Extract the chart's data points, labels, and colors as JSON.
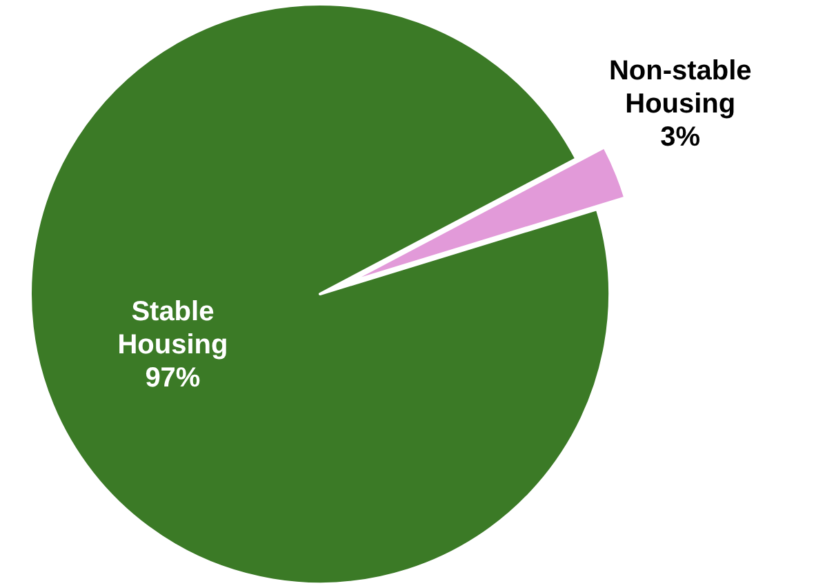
{
  "chart_data": {
    "type": "pie",
    "categories": [
      "Stable Housing",
      "Non-stable Housing"
    ],
    "values": [
      97,
      3
    ],
    "colors": [
      "#3b7a26",
      "#e29ad9"
    ],
    "value_labels": [
      "97%",
      "3%"
    ]
  }
}
